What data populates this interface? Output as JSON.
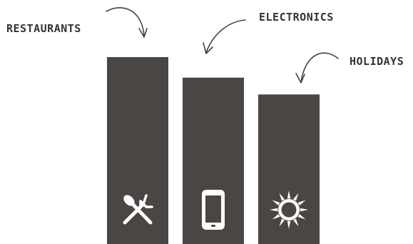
{
  "chart_data": {
    "type": "bar",
    "categories": [
      "RESTAURANTS",
      "ELECTRONICS",
      "HOLIDAYS"
    ],
    "values": [
      100,
      89,
      80
    ],
    "icons": [
      "fork-knife-icon",
      "smartphone-icon",
      "sun-icon"
    ],
    "ylim": [
      0,
      100
    ],
    "grid": false,
    "legend": "none",
    "colors": {
      "bar": "#4a4644",
      "icon": "#ffffff",
      "text": "#333333",
      "arrow": "#444444"
    }
  }
}
